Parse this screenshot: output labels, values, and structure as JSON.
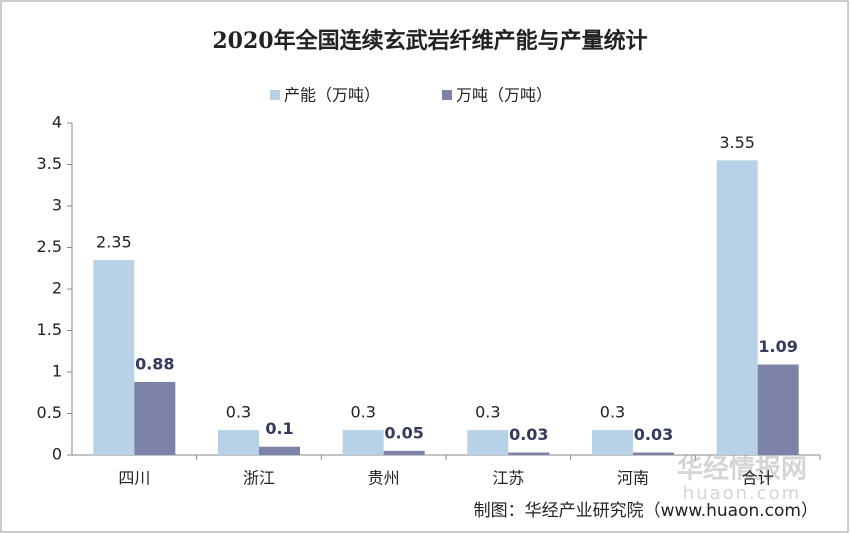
{
  "chart_data": {
    "type": "bar",
    "title": "2020年全国连续玄武岩纤维产能与产量统计",
    "categories": [
      "四川",
      "浙江",
      "贵州",
      "江苏",
      "河南",
      "合计"
    ],
    "series": [
      {
        "name": "产能（万吨）",
        "color": "#b7d2e7",
        "values": [
          2.35,
          0.3,
          0.3,
          0.3,
          0.3,
          3.55
        ]
      },
      {
        "name": "万吨（万吨）",
        "color": "#7c82a8",
        "values": [
          0.88,
          0.1,
          0.05,
          0.03,
          0.03,
          1.09
        ]
      }
    ],
    "ylim": [
      0,
      4
    ],
    "yticks": [
      0,
      0.5,
      1,
      1.5,
      2,
      2.5,
      3,
      3.5,
      4
    ],
    "legend": "top",
    "source": "制图：华经产业研究院（www.huaon.com）",
    "watermark": [
      "华经情报网",
      "huaon.com"
    ]
  }
}
